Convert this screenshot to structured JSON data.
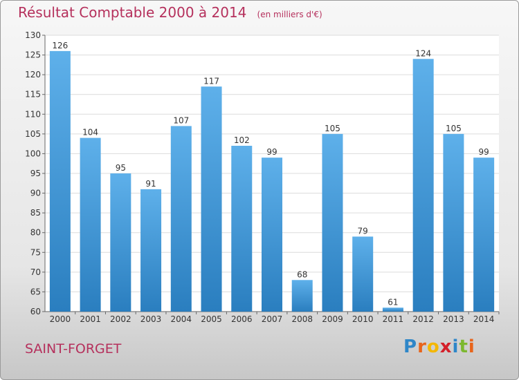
{
  "title": "Résultat Comptable 2000 à 2014",
  "unit_note": "(en milliers d'€)",
  "commune": "SAINT-FORGET",
  "logo": {
    "letters": [
      "P",
      "r",
      "o",
      "x",
      "i",
      "t",
      "i"
    ],
    "colors": [
      "#2e86c8",
      "#e8641b",
      "#f4b700",
      "#d4202a",
      "#2e86c8",
      "#7cb82f",
      "#e8641b"
    ]
  },
  "colors": {
    "bar_light": "#5eb0ea",
    "bar_dark": "#2a7ebf",
    "title": "#b5305c"
  },
  "chart_data": {
    "type": "bar",
    "categories": [
      "2000",
      "2001",
      "2002",
      "2003",
      "2004",
      "2005",
      "2006",
      "2007",
      "2008",
      "2009",
      "2010",
      "2011",
      "2012",
      "2013",
      "2014"
    ],
    "values": [
      126,
      104,
      95,
      91,
      107,
      117,
      102,
      99,
      68,
      105,
      79,
      61,
      124,
      105,
      99
    ],
    "ylim": [
      60,
      130
    ],
    "yticks": [
      60,
      65,
      70,
      75,
      80,
      85,
      90,
      95,
      100,
      105,
      110,
      115,
      120,
      125,
      130
    ],
    "grid": true,
    "data_labels": true
  }
}
